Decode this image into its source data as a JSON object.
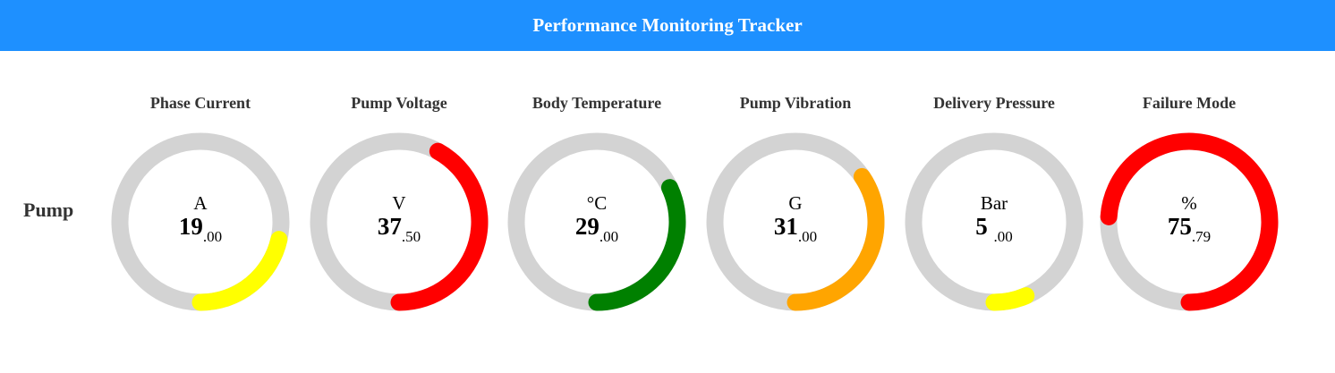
{
  "header": {
    "title": "Performance Monitoring Tracker"
  },
  "row_label": "Pump",
  "gauges": [
    {
      "title": "Phase Current",
      "unit": "A",
      "int": "19",
      "dec": ".00",
      "color": "#ffff00",
      "arc_start": 0.0,
      "arc_end": 0.215
    },
    {
      "title": "Pump Voltage",
      "unit": "V",
      "int": "37",
      "dec": ".50",
      "color": "#ff0000",
      "arc_start": 0.0,
      "arc_end": 0.42
    },
    {
      "title": "Body Temperature",
      "unit": "°C",
      "int": "29",
      "dec": ".00",
      "color": "#008000",
      "arc_start": 0.0,
      "arc_end": 0.32
    },
    {
      "title": "Pump Vibration",
      "unit": "G",
      "int": "31",
      "dec": ".00",
      "color": "#ffa500",
      "arc_start": 0.0,
      "arc_end": 0.345
    },
    {
      "title": "Delivery Pressure",
      "unit": "Bar",
      "int": "5 ",
      "dec": " .00",
      "color": "#ffff00",
      "arc_start": 0.0,
      "arc_end": 0.065
    },
    {
      "title": "Failure Mode",
      "unit": "%",
      "int": "75",
      "dec": ".79",
      "color": "#ff0000",
      "arc_start": 0.0,
      "arc_end": 0.74
    }
  ],
  "track_color": "#d3d3d3"
}
